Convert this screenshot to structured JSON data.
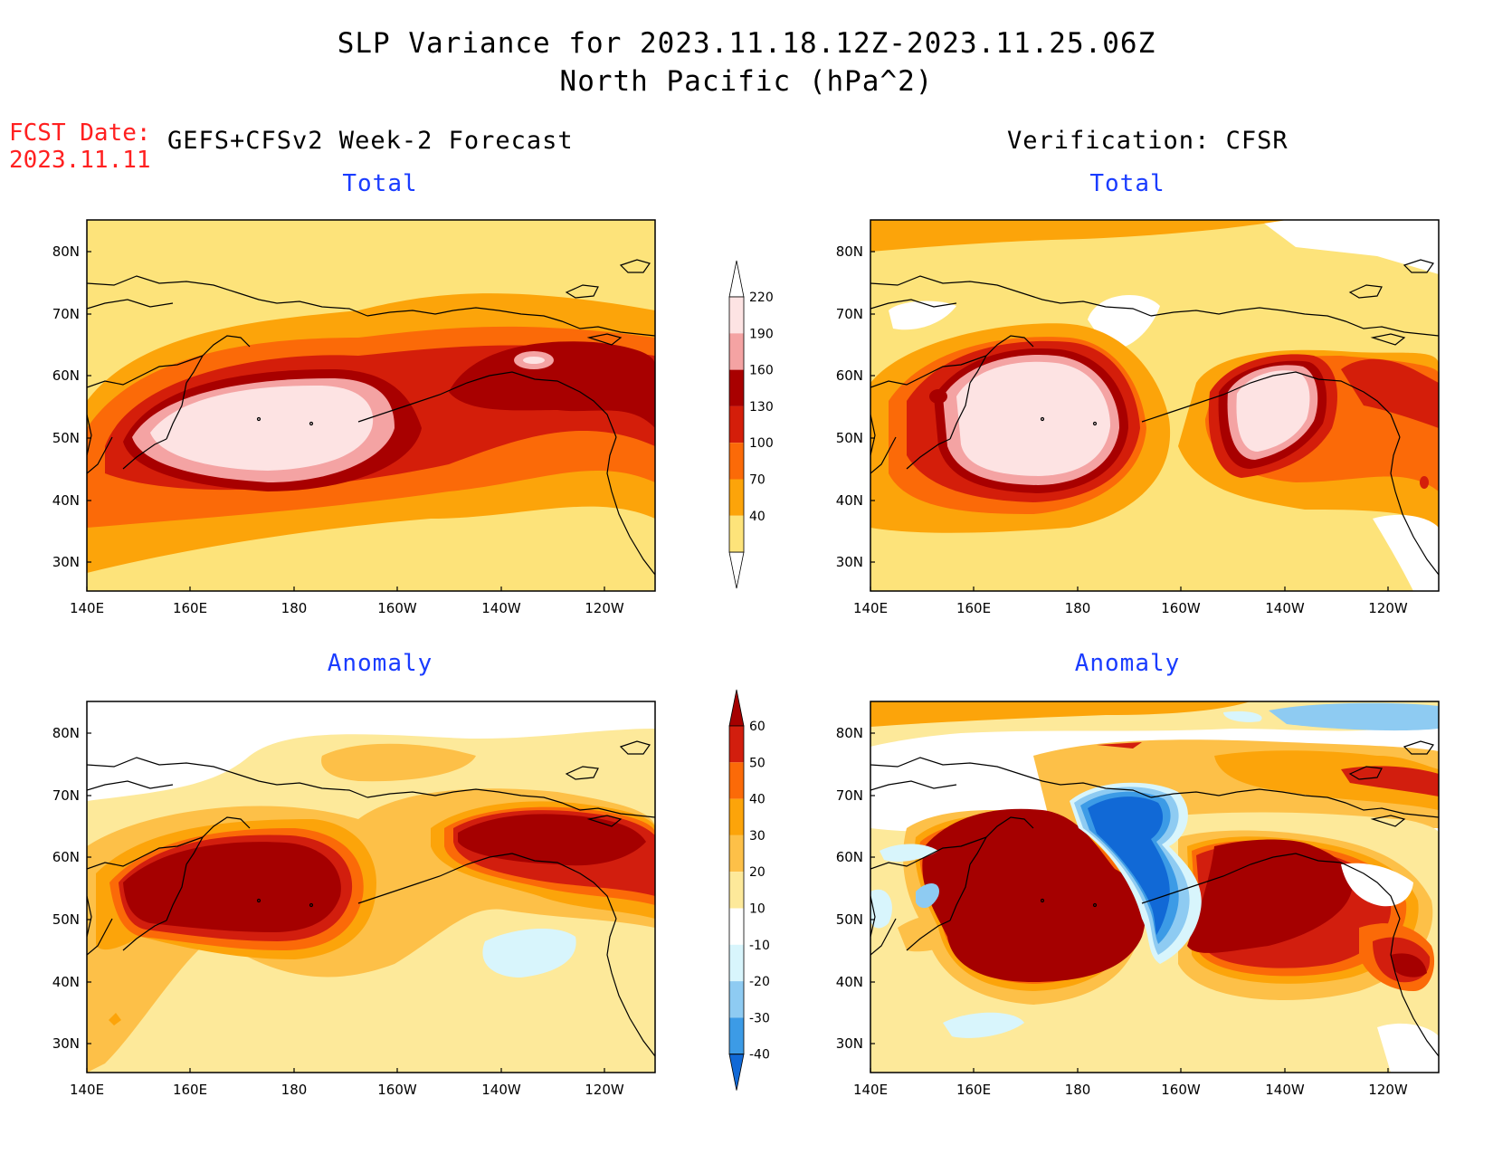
{
  "header": {
    "title_line1": "SLP Variance for 2023.11.18.12Z-2023.11.25.06Z",
    "title_line2": "North Pacific (hPa^2)"
  },
  "fcst": {
    "label": "FCST Date:",
    "date": "2023.11.11"
  },
  "columns": {
    "left": "GEFS+CFSv2 Week-2 Forecast",
    "right": "Verification: CFSR"
  },
  "panels": {
    "top_left": "Total",
    "top_right": "Total",
    "bottom_left": "Anomaly",
    "bottom_right": "Anomaly"
  },
  "axes": {
    "lon_labels": [
      "140E",
      "160E",
      "180",
      "160W",
      "140W",
      "120W"
    ],
    "lat_labels": [
      "80N",
      "70N",
      "60N",
      "50N",
      "40N",
      "30N"
    ]
  },
  "colorbars": {
    "total": {
      "levels": [
        "220",
        "190",
        "160",
        "130",
        "100",
        "70",
        "40"
      ],
      "colors": [
        "#fde3e3",
        "#f4a3a3",
        "#a80000",
        "#d41e0a",
        "#fb6a08",
        "#fca40a",
        "#fde37a"
      ]
    },
    "anomaly": {
      "levels": [
        "60",
        "50",
        "40",
        "30",
        "20",
        "10",
        "-10",
        "-20",
        "-30",
        "-40"
      ],
      "colors": [
        "#a50000",
        "#d21e0e",
        "#fb6a08",
        "#fca40a",
        "#fdc048",
        "#fde99a",
        "#ffffff",
        "#d8f5fc",
        "#8ecbf2",
        "#3c9be6",
        "#1169d6"
      ]
    }
  }
}
